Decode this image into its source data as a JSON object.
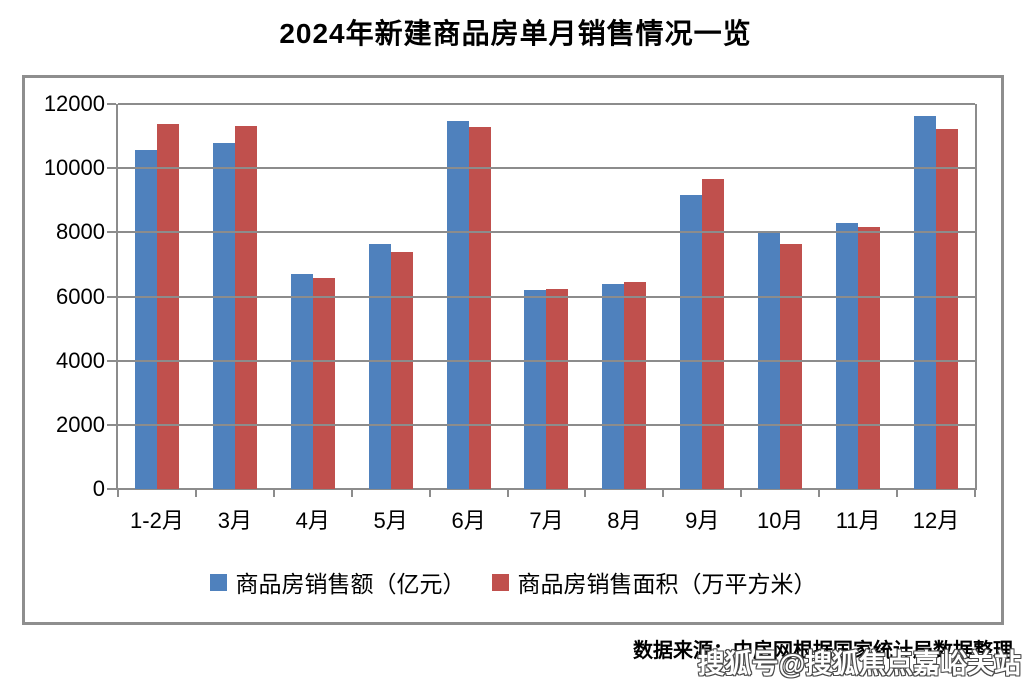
{
  "title": "2024年新建商品房单月销售情况一览",
  "source_note": "数据来源：中房网根据国家统计局数据整理",
  "watermark": "搜狐号@搜狐焦点嘉峪关站",
  "colors": {
    "series_sales_amount": "#4F81BD",
    "series_sales_area": "#C0504D",
    "gridline": "#8C8C8C",
    "frame_border": "#8E8E8E",
    "text": "#000000"
  },
  "chart_data": {
    "type": "bar",
    "title": "2024年新建商品房单月销售情况一览",
    "categories": [
      "1-2月",
      "3月",
      "4月",
      "5月",
      "6月",
      "7月",
      "8月",
      "9月",
      "10月",
      "11月",
      "12月"
    ],
    "series": [
      {
        "name": "商品房销售额（亿元）",
        "color": "#4F81BD",
        "values": [
          10566,
          10793,
          6713,
          7629,
          11463,
          6197,
          6403,
          9162,
          7991,
          8278,
          11634
        ]
      },
      {
        "name": "商品房销售面积（万平方米）",
        "color": "#C0504D",
        "values": [
          11369,
          11299,
          6574,
          7389,
          11281,
          6228,
          6448,
          9671,
          7643,
          8167,
          11228
        ]
      }
    ],
    "xlabel": "",
    "ylabel": "",
    "y_axis": {
      "min": 0,
      "max": 12000,
      "step": 2000,
      "ticks": [
        0,
        2000,
        4000,
        6000,
        8000,
        10000,
        12000
      ]
    },
    "grid": true,
    "legend_position": "bottom"
  }
}
